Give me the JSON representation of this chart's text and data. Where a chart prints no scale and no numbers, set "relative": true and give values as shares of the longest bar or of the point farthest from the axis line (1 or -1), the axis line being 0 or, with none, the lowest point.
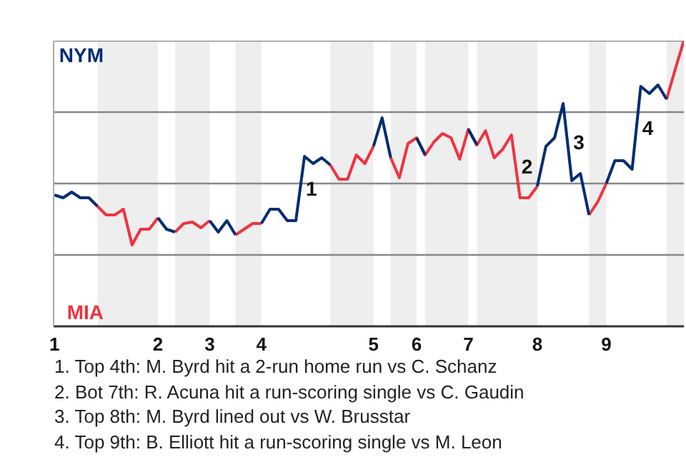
{
  "chart_data": {
    "type": "line",
    "relative": true,
    "categories": [
      "1",
      null,
      null,
      null,
      null,
      null,
      null,
      null,
      null,
      null,
      null,
      null,
      "2",
      null,
      null,
      null,
      null,
      null,
      "3",
      null,
      null,
      null,
      null,
      null,
      "4",
      null,
      null,
      null,
      null,
      null,
      null,
      null,
      null,
      null,
      null,
      null,
      null,
      "5",
      null,
      null,
      null,
      null,
      "6",
      null,
      null,
      null,
      null,
      null,
      "7",
      null,
      null,
      null,
      null,
      null,
      null,
      null,
      "8",
      null,
      null,
      null,
      null,
      null,
      null,
      null,
      "9",
      null,
      null,
      null,
      null,
      null,
      null,
      null,
      null,
      null
    ],
    "series": [
      {
        "color": "#002d72",
        "values": [
          0.46,
          0.45,
          0.47,
          0.45,
          0.45,
          0.42,
          null,
          null,
          null,
          null,
          null,
          null,
          0.38,
          0.34,
          0.33,
          null,
          null,
          null,
          0.37,
          0.33,
          0.37,
          0.32,
          null,
          null,
          0.36,
          0.41,
          0.41,
          0.37,
          0.37,
          0.595,
          0.57,
          0.59,
          0.565,
          null,
          null,
          null,
          null,
          0.63,
          0.73,
          0.59,
          null,
          null,
          0.66,
          0.6,
          null,
          null,
          null,
          null,
          0.69,
          0.635,
          null,
          null,
          null,
          null,
          null,
          null,
          0.49,
          0.63,
          0.66,
          0.78,
          0.51,
          0.535,
          0.39,
          null,
          0.5,
          0.58,
          0.58,
          0.55,
          0.84,
          0.815,
          0.845,
          0.795,
          null,
          null
        ]
      },
      {
        "color": "#ef3340",
        "values": [
          null,
          null,
          null,
          null,
          null,
          0.42,
          0.39,
          0.39,
          0.41,
          0.285,
          0.34,
          0.34,
          0.38,
          null,
          0.33,
          0.36,
          0.365,
          0.345,
          0.37,
          null,
          null,
          0.32,
          0.34,
          0.36,
          0.36,
          null,
          null,
          null,
          null,
          null,
          null,
          null,
          0.565,
          0.515,
          0.515,
          0.6,
          0.57,
          0.63,
          null,
          0.59,
          0.52,
          0.64,
          0.66,
          0.6,
          0.645,
          0.675,
          0.66,
          0.585,
          0.69,
          0.635,
          0.685,
          0.59,
          0.62,
          0.67,
          0.45,
          0.45,
          0.49,
          null,
          null,
          null,
          null,
          null,
          0.39,
          0.435,
          0.5,
          null,
          null,
          null,
          null,
          null,
          null,
          0.795,
          0.9,
          1
        ]
      }
    ],
    "ref_lines": [
      {
        "axis": "y",
        "value": 0.25,
        "color": "#888888"
      },
      {
        "axis": "y",
        "value": 0.5,
        "color": "#888888"
      },
      {
        "axis": "y",
        "value": 0.75,
        "color": "#888888"
      },
      {
        "axis": "y",
        "value": 1,
        "color": "#888888"
      }
    ],
    "annotations": [
      "1",
      "2",
      "3",
      "4",
      "NYM",
      "MIA",
      "1. Top 4th: M. Byrd hit a 2-run home run vs C. Schanz",
      "2. Bot 7th: R. Acuna hit a run-scoring single vs C. Gaudin",
      "3. Top 8th: M. Byrd lined out vs W. Brusstar",
      "4. Top 9th: B. Elliott hit a run-scoring single vs M. Leon"
    ]
  }
}
